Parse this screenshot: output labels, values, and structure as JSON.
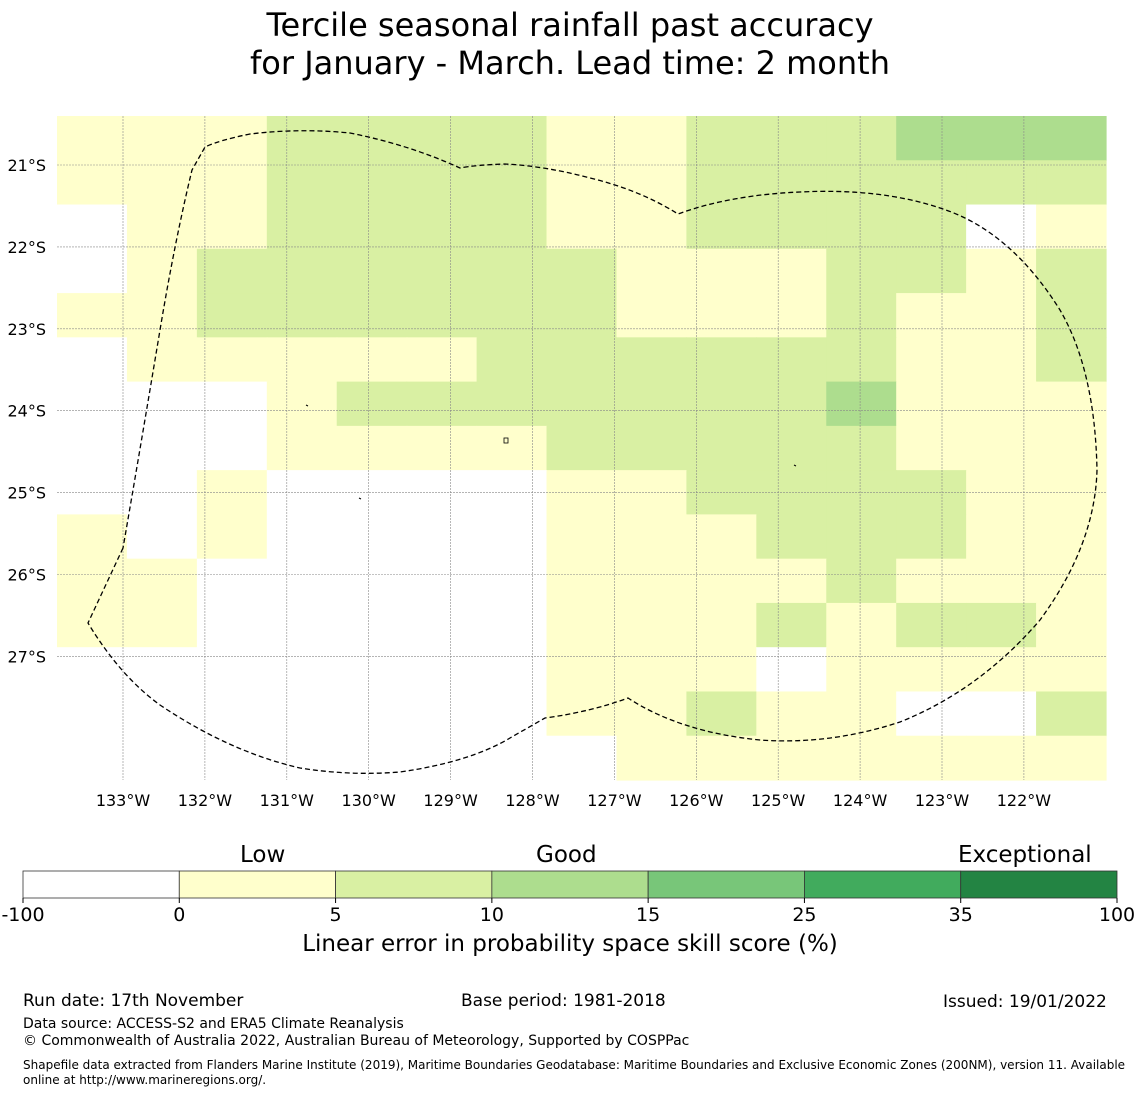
{
  "title": {
    "line1": "Tercile seasonal rainfall past accuracy",
    "line2": "for January - March. Lead time: 2 month"
  },
  "map": {
    "lat_labels": [
      "21°S",
      "22°S",
      "23°S",
      "24°S",
      "25°S",
      "26°S",
      "27°S"
    ],
    "lon_labels": [
      "133°W",
      "132°W",
      "131°W",
      "130°W",
      "129°W",
      "128°W",
      "127°W",
      "126°W",
      "125°W",
      "124°W",
      "123°W",
      "122°W"
    ],
    "grid_cols": 15,
    "grid_rows": 15,
    "cell_classes_legend": "0 = missing/below 0, 1 = 0-5, 2 = 5-10, 3 = 10-15",
    "cells": [
      "111222211222333",
      "111222211222222",
      "011222211222201",
      "012222221112212",
      "112222221112112",
      "011111222222112",
      "000122222223111",
      "000111122222111",
      "001000011222211",
      "101000011122211",
      "110000011112111",
      "110000011121221",
      "000000011101111",
      "000000011211002",
      "000000001111111"
    ],
    "colors": [
      "#ffffff",
      "#ffffcc",
      "#d9f0a3",
      "#addd8e"
    ],
    "boundary_line": "dashed"
  },
  "colorbar": {
    "categories": [
      "Low",
      "Good",
      "Exceptional"
    ],
    "ticks": [
      "-100",
      "0",
      "5",
      "10",
      "15",
      "25",
      "35",
      "100"
    ],
    "colors": [
      "#ffffff",
      "#ffffcc",
      "#d9f0a3",
      "#addd8e",
      "#78c679",
      "#41ab5d",
      "#238443"
    ],
    "label": "Linear error in probability space skill score (%)"
  },
  "footer": {
    "run_date": "Run date: 17th November",
    "base_period": "Base period: 1981-2018",
    "issued": "Issued: 19/01/2022",
    "data_source": "Data source: ACCESS-S2 and ERA5 Climate Reanalysis",
    "copyright": "© Commonwealth of Australia 2022, Australian Bureau of Meteorology, Supported by COSPPac",
    "shapefile": "Shapefile data extracted from Flanders Marine Institute (2019), Maritime Boundaries Geodatabase: Maritime Boundaries and Exclusive Economic Zones (200NM), version 11. Available online at http://www.marineregions.org/."
  }
}
